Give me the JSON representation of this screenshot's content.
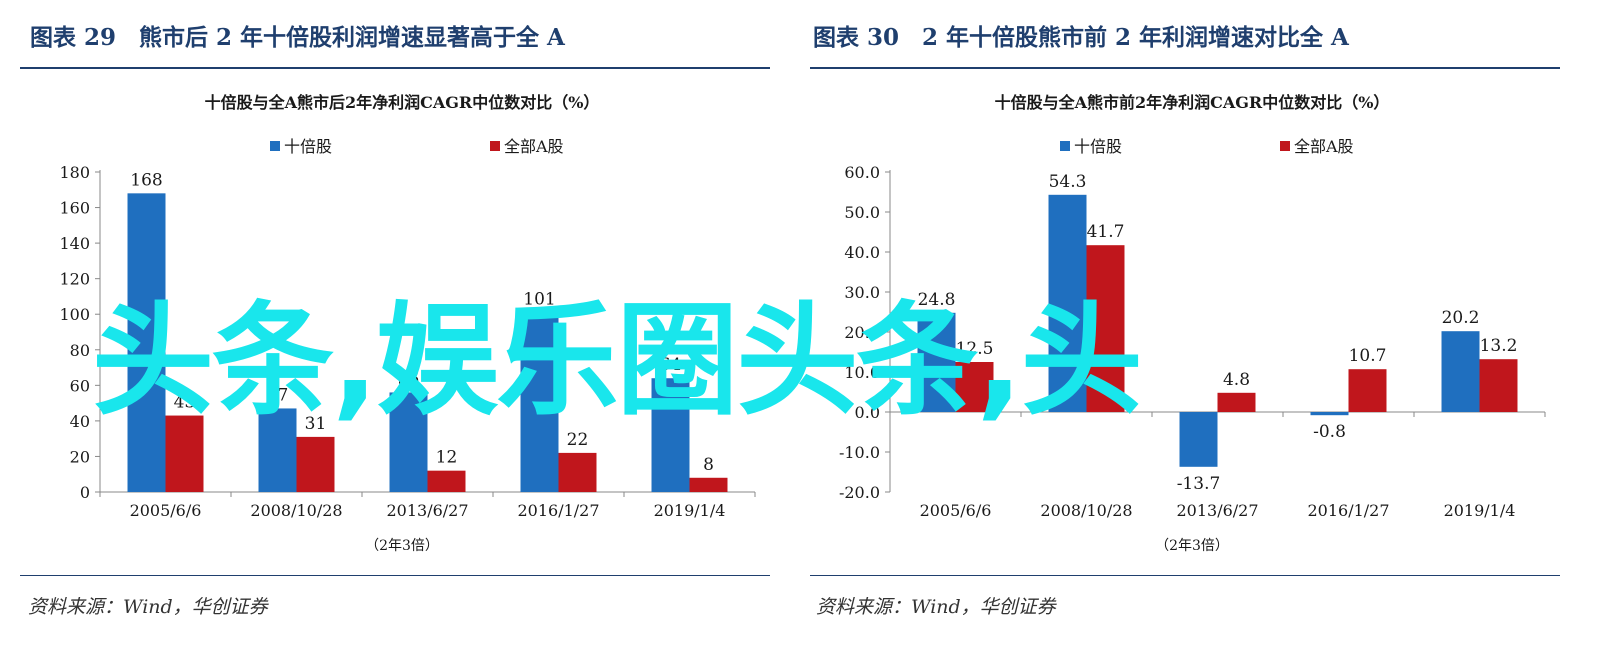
{
  "charts": [
    {
      "fig_title": "图表 29　熊市后 2 年十倍股利润增速显著高于全 A",
      "source": "资料来源：Wind，华创证券"
    },
    {
      "fig_title": "图表 30　2 年十倍股熊市前 2 年利润增速对比全 A",
      "source": "资料来源：Wind，华创证券"
    }
  ],
  "watermark": "头条,娱乐圈头条,头",
  "colors": {
    "blue": "#1f6fbf",
    "red": "#c0161c",
    "title_blue": "#1f3f6e",
    "watermark": "#19e6ec"
  },
  "chart_data": [
    {
      "type": "bar",
      "title": "十倍股与全A熊市后2年净利润CAGR中位数对比（%）",
      "categories": [
        "2005/6/6",
        "2008/10/28",
        "2013/6/27",
        "2016/1/27",
        "2019/1/4"
      ],
      "series": [
        {
          "name": "十倍股",
          "values": [
            168,
            47,
            56,
            101,
            64
          ]
        },
        {
          "name": "全部A股",
          "values": [
            43,
            31,
            12,
            22,
            8
          ]
        }
      ],
      "xlabel": "（2年3倍）",
      "ylabel": "",
      "ylim": [
        0,
        180
      ],
      "yticks": [
        0,
        20,
        40,
        60,
        80,
        100,
        120,
        140,
        160,
        180
      ],
      "ytick_decimals": 0,
      "grid": false,
      "legend": "top"
    },
    {
      "type": "bar",
      "title": "十倍股与全A熊市前2年净利润CAGR中位数对比（%）",
      "categories": [
        "2005/6/6",
        "2008/10/28",
        "2013/6/27",
        "2016/1/27",
        "2019/1/4"
      ],
      "series": [
        {
          "name": "十倍股",
          "values": [
            24.8,
            54.3,
            -13.7,
            -0.8,
            20.2
          ]
        },
        {
          "name": "全部A股",
          "values": [
            12.5,
            41.7,
            4.8,
            10.7,
            13.2
          ]
        }
      ],
      "xlabel": "（2年3倍）",
      "ylabel": "",
      "ylim": [
        -20,
        60
      ],
      "yticks": [
        -20,
        -10,
        0,
        10,
        20,
        30,
        40,
        50,
        60
      ],
      "ytick_decimals": 1,
      "grid": false,
      "legend": "top"
    }
  ]
}
